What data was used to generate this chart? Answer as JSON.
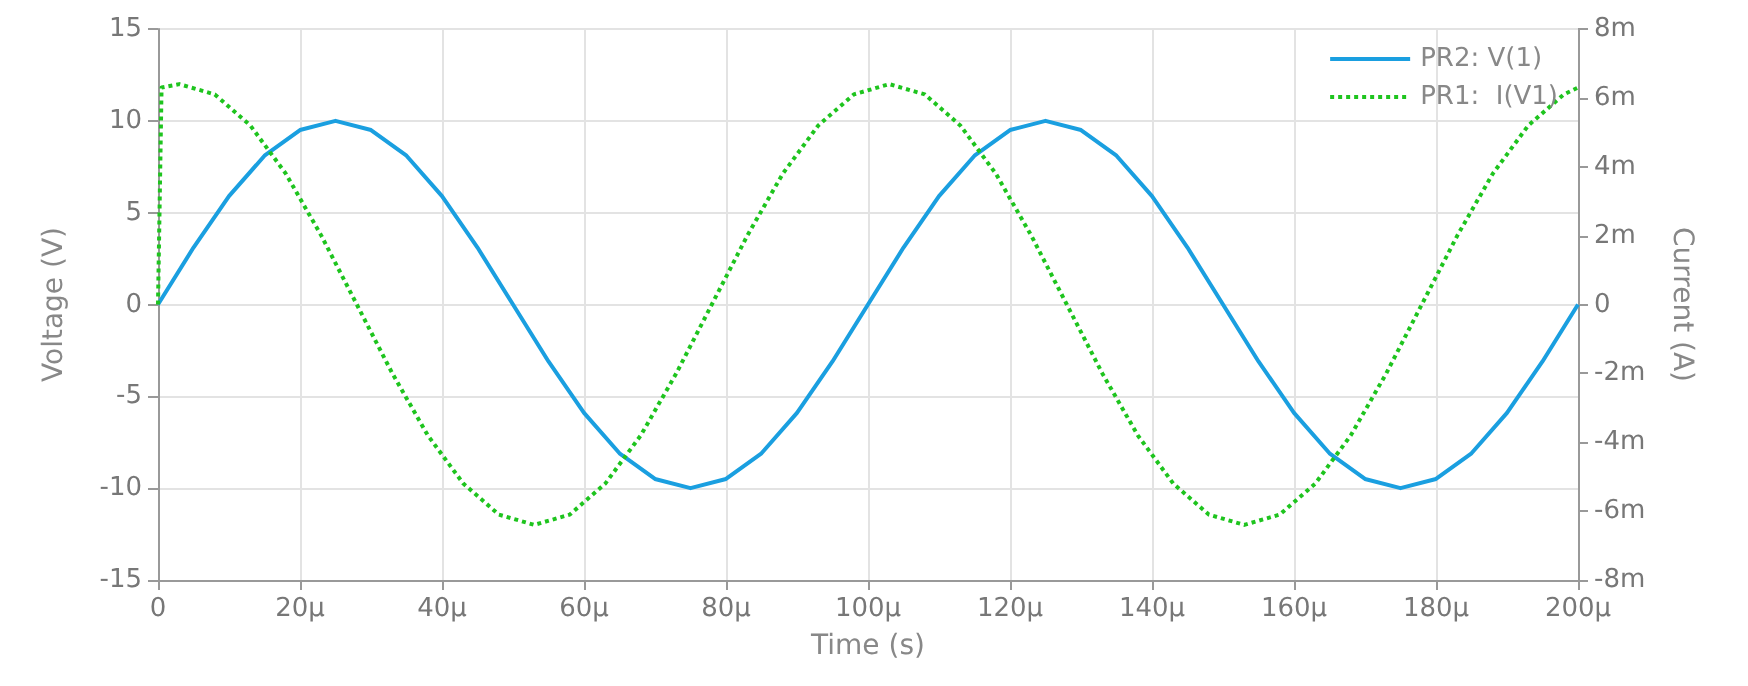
{
  "chart_data": {
    "type": "line",
    "xlabel": "Time (s)",
    "ylabel": "Voltage (V)",
    "y2label": "Current (A)",
    "xlim": [
      0,
      200
    ],
    "xticks": [
      0,
      {
        "value": 20,
        "label": "20µ"
      },
      {
        "value": 40,
        "label": "40µ"
      },
      {
        "value": 60,
        "label": "60µ"
      },
      {
        "value": 80,
        "label": "80µ"
      },
      {
        "value": 100,
        "label": "100µ"
      },
      {
        "value": 120,
        "label": "120µ"
      },
      {
        "value": 140,
        "label": "140µ"
      },
      {
        "value": 160,
        "label": "160µ"
      },
      {
        "value": 180,
        "label": "180µ"
      },
      {
        "value": 200,
        "label": "200µ"
      }
    ],
    "ylim": [
      -15,
      15
    ],
    "yticks": [
      -15,
      -10,
      -5,
      0,
      5,
      10,
      15
    ],
    "y2lim": [
      -8,
      8
    ],
    "y2ticks": [
      {
        "value": -8,
        "label": "-8m"
      },
      {
        "value": -6,
        "label": "-6m"
      },
      {
        "value": -4,
        "label": "-4m"
      },
      {
        "value": -2,
        "label": "-2m"
      },
      0,
      {
        "value": 2,
        "label": "2m"
      },
      {
        "value": 4,
        "label": "4m"
      },
      {
        "value": 6,
        "label": "6m"
      },
      {
        "value": 8,
        "label": "8m"
      }
    ],
    "grid": true,
    "legend": "top right",
    "marker": "none",
    "series": [
      {
        "name": "PR2: V(1)",
        "color": "#1a9fe0",
        "line_style": "solid",
        "x": [
          0,
          5,
          10,
          15,
          20,
          25,
          30,
          35,
          40,
          45,
          50,
          55,
          60,
          65,
          70,
          75,
          80,
          85,
          90,
          95,
          100,
          105,
          110,
          115,
          120,
          125,
          130,
          135,
          140,
          145,
          150,
          155,
          160,
          165,
          170,
          175,
          180,
          185,
          190,
          195,
          200
        ],
        "values": [
          0,
          3.1,
          5.9,
          8.1,
          9.5,
          10,
          9.5,
          8.1,
          5.9,
          3.1,
          0,
          -3.1,
          -5.9,
          -8.1,
          -9.5,
          -10,
          -9.5,
          -8.1,
          -5.9,
          -3.1,
          0,
          3.1,
          5.9,
          8.1,
          9.5,
          10,
          9.5,
          8.1,
          5.9,
          3.1,
          0,
          -3.1,
          -5.9,
          -8.1,
          -9.5,
          -10,
          -9.5,
          -8.1,
          -5.9,
          -3.1,
          0
        ]
      },
      {
        "name": "PR1:  I(V1)",
        "color": "#1ec41e",
        "line_style": "dotted",
        "axis": "y2",
        "x": [
          0,
          0.5,
          3,
          8,
          13,
          18,
          23,
          28,
          33,
          38,
          43,
          48,
          53,
          58,
          63,
          68,
          73,
          78,
          83,
          88,
          93,
          98,
          103,
          108,
          113,
          118,
          123,
          128,
          133,
          138,
          143,
          148,
          153,
          158,
          163,
          168,
          173,
          178,
          183,
          188,
          193,
          198,
          200
        ],
        "values": [
          0,
          6.3,
          6.4,
          6.1,
          5.2,
          3.8,
          2,
          0,
          -2,
          -3.8,
          -5.2,
          -6.1,
          -6.4,
          -6.1,
          -5.2,
          -3.8,
          -2,
          0,
          2,
          3.8,
          5.2,
          6.1,
          6.4,
          6.1,
          5.2,
          3.8,
          2,
          0,
          -2,
          -3.8,
          -5.2,
          -6.1,
          -6.4,
          -6.1,
          -5.2,
          -3.8,
          -2,
          0,
          2,
          3.8,
          5.2,
          6.1,
          6.3
        ]
      }
    ]
  }
}
